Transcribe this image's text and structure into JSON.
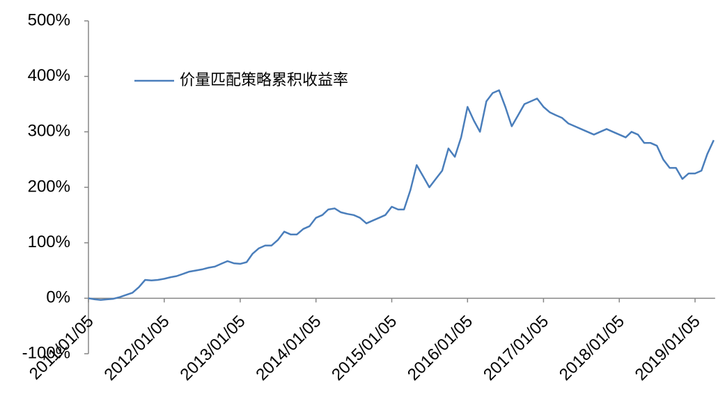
{
  "chart_data": {
    "type": "line",
    "x": [
      "2011/01/05",
      "2011/02/05",
      "2011/03/05",
      "2011/04/05",
      "2011/05/05",
      "2011/06/05",
      "2011/07/05",
      "2011/08/05",
      "2011/09/05",
      "2011/10/05",
      "2011/11/05",
      "2011/12/05",
      "2012/01/05",
      "2012/02/05",
      "2012/03/05",
      "2012/04/05",
      "2012/05/05",
      "2012/06/05",
      "2012/07/05",
      "2012/08/05",
      "2012/09/05",
      "2012/10/05",
      "2012/11/05",
      "2012/12/05",
      "2013/01/05",
      "2013/02/05",
      "2013/03/05",
      "2013/04/05",
      "2013/05/05",
      "2013/06/05",
      "2013/07/05",
      "2013/08/05",
      "2013/09/05",
      "2013/10/05",
      "2013/11/05",
      "2013/12/05",
      "2014/01/05",
      "2014/02/05",
      "2014/03/05",
      "2014/04/05",
      "2014/05/05",
      "2014/06/05",
      "2014/07/05",
      "2014/08/05",
      "2014/09/05",
      "2014/10/05",
      "2014/11/05",
      "2014/12/05",
      "2015/01/05",
      "2015/02/05",
      "2015/03/05",
      "2015/04/05",
      "2015/05/05",
      "2015/06/05",
      "2015/07/05",
      "2015/08/05",
      "2015/09/05",
      "2015/10/05",
      "2015/11/05",
      "2015/12/05",
      "2016/01/05",
      "2016/02/05",
      "2016/03/05",
      "2016/04/05",
      "2016/05/05",
      "2016/06/05",
      "2016/07/05",
      "2016/08/05",
      "2016/09/05",
      "2016/10/05",
      "2016/11/05",
      "2016/12/05",
      "2017/01/05",
      "2017/02/05",
      "2017/03/05",
      "2017/04/05",
      "2017/05/05",
      "2017/06/05",
      "2017/07/05",
      "2017/08/05",
      "2017/09/05",
      "2017/10/05",
      "2017/11/05",
      "2017/12/05",
      "2018/01/05",
      "2018/02/05",
      "2018/03/05",
      "2018/04/05",
      "2018/05/05",
      "2018/06/05",
      "2018/07/05",
      "2018/08/05",
      "2018/09/05",
      "2018/10/05",
      "2018/11/05",
      "2018/12/05",
      "2019/01/05",
      "2019/02/05",
      "2019/03/05",
      "2019/04/05"
    ],
    "series": [
      {
        "name": "价量匹配策略累积收益率",
        "color": "#4a7ebb",
        "values": [
          0,
          -2,
          -3,
          -2,
          -1,
          2,
          6,
          10,
          20,
          33,
          32,
          33,
          35,
          38,
          40,
          44,
          48,
          50,
          52,
          55,
          57,
          62,
          67,
          63,
          62,
          65,
          80,
          90,
          95,
          95,
          105,
          120,
          115,
          115,
          125,
          130,
          145,
          150,
          160,
          162,
          155,
          152,
          150,
          145,
          135,
          140,
          145,
          150,
          165,
          160,
          160,
          195,
          240,
          220,
          200,
          215,
          230,
          270,
          255,
          290,
          345,
          320,
          300,
          355,
          370,
          375,
          345,
          310,
          330,
          350,
          355,
          360,
          345,
          335,
          330,
          325,
          315,
          310,
          305,
          300,
          295,
          300,
          305,
          300,
          295,
          290,
          300,
          295,
          280,
          280,
          275,
          250,
          235,
          235,
          215,
          225,
          225,
          230,
          260,
          285
        ]
      }
    ],
    "xticks": [
      "2011/01/05",
      "2012/01/05",
      "2013/01/05",
      "2014/01/05",
      "2015/01/05",
      "2016/01/05",
      "2017/01/05",
      "2018/01/05",
      "2019/01/05"
    ],
    "ylim": [
      -100,
      500
    ],
    "yticks": [
      {
        "value": -100,
        "label": "-100%"
      },
      {
        "value": 0,
        "label": "0%"
      },
      {
        "value": 100,
        "label": "100%"
      },
      {
        "value": 200,
        "label": "200%"
      },
      {
        "value": 300,
        "label": "300%"
      },
      {
        "value": 400,
        "label": "400%"
      },
      {
        "value": 500,
        "label": "500%"
      }
    ],
    "grid": false,
    "legend": "upper left"
  }
}
